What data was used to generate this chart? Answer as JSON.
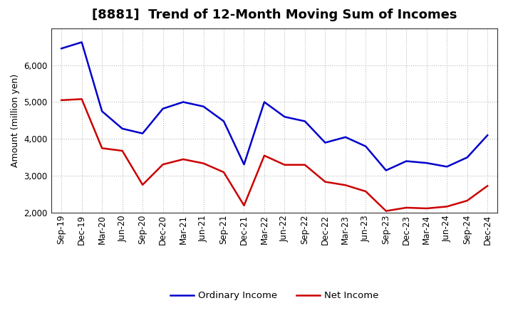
{
  "title": "[8881]  Trend of 12-Month Moving Sum of Incomes",
  "ylabel": "Amount (million yen)",
  "background_color": "#ffffff",
  "grid_color": "#aaaaaa",
  "ylim": [
    2000,
    7000
  ],
  "yticks": [
    2000,
    3000,
    4000,
    5000,
    6000
  ],
  "x_labels": [
    "Sep-19",
    "Dec-19",
    "Mar-20",
    "Jun-20",
    "Sep-20",
    "Dec-20",
    "Mar-21",
    "Jun-21",
    "Sep-21",
    "Dec-21",
    "Mar-22",
    "Jun-22",
    "Sep-22",
    "Dec-22",
    "Mar-23",
    "Jun-23",
    "Sep-23",
    "Dec-23",
    "Mar-24",
    "Jun-24",
    "Sep-24",
    "Dec-24"
  ],
  "ordinary_income": [
    6450,
    6620,
    4750,
    4280,
    4150,
    4820,
    5000,
    4880,
    4480,
    3310,
    5000,
    4600,
    4480,
    3900,
    4050,
    3800,
    3150,
    3400,
    3350,
    3250,
    3500,
    4100
  ],
  "net_income": [
    5050,
    5080,
    3750,
    3680,
    2760,
    3310,
    3450,
    3340,
    3100,
    2200,
    3550,
    3300,
    3300,
    2840,
    2750,
    2580,
    2050,
    2140,
    2120,
    2170,
    2330,
    2730
  ],
  "ordinary_color": "#0000cc",
  "net_color": "#cc0000",
  "line_width": 1.8,
  "title_fontsize": 13,
  "ylabel_fontsize": 9,
  "tick_fontsize": 8.5,
  "legend_fontsize": 9.5
}
